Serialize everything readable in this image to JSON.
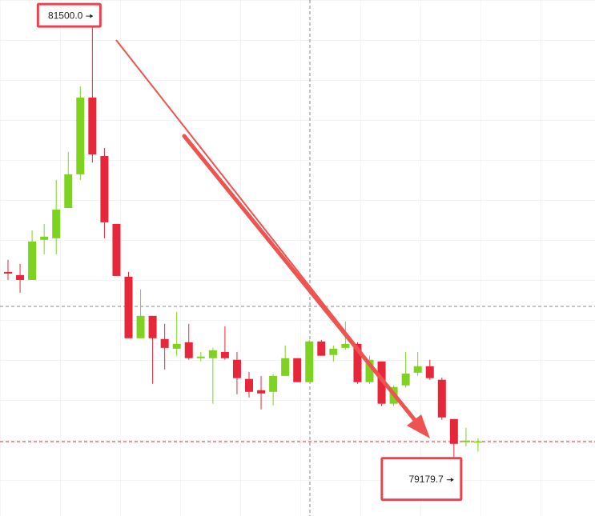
{
  "chart_data": {
    "type": "candlestick",
    "up_color": "#7ed321",
    "down_color": "#e8263a",
    "ylim": [
      79000,
      81560
    ],
    "candles": [
      {
        "open": 80211,
        "high": 80271,
        "low": 80171,
        "close": 80203
      },
      {
        "open": 80195,
        "high": 80251,
        "low": 80108,
        "close": 80171
      },
      {
        "open": 80171,
        "high": 80417,
        "low": 80171,
        "close": 80362
      },
      {
        "open": 80370,
        "high": 80449,
        "low": 80298,
        "close": 80386
      },
      {
        "open": 80378,
        "high": 80667,
        "low": 80298,
        "close": 80520
      },
      {
        "open": 80528,
        "high": 80806,
        "low": 80528,
        "close": 80695
      },
      {
        "open": 80695,
        "high": 81131,
        "low": 80667,
        "close": 81076
      },
      {
        "open": 81076,
        "high": 81500,
        "low": 80754,
        "close": 80794
      },
      {
        "open": 80786,
        "high": 80826,
        "low": 80378,
        "close": 80457
      },
      {
        "open": 80449,
        "high": 80449,
        "low": 80191,
        "close": 80191
      },
      {
        "open": 80187,
        "high": 80211,
        "low": 79882,
        "close": 79882
      },
      {
        "open": 79882,
        "high": 80124,
        "low": 79882,
        "close": 79993
      },
      {
        "open": 79993,
        "high": 79993,
        "low": 79656,
        "close": 79882
      },
      {
        "open": 79878,
        "high": 79953,
        "low": 79727,
        "close": 79834
      },
      {
        "open": 79830,
        "high": 80013,
        "low": 79795,
        "close": 79854
      },
      {
        "open": 79862,
        "high": 79953,
        "low": 79775,
        "close": 79783
      },
      {
        "open": 79783,
        "high": 79814,
        "low": 79767,
        "close": 79791
      },
      {
        "open": 79783,
        "high": 79834,
        "low": 79557,
        "close": 79822
      },
      {
        "open": 79814,
        "high": 79941,
        "low": 79775,
        "close": 79783
      },
      {
        "open": 79775,
        "high": 79814,
        "low": 79604,
        "close": 79684
      },
      {
        "open": 79680,
        "high": 79715,
        "low": 79588,
        "close": 79616
      },
      {
        "open": 79624,
        "high": 79695,
        "low": 79529,
        "close": 79608
      },
      {
        "open": 79616,
        "high": 79703,
        "low": 79549,
        "close": 79695
      },
      {
        "open": 79695,
        "high": 79846,
        "low": 79695,
        "close": 79783
      },
      {
        "open": 79783,
        "high": 79783,
        "low": 79664,
        "close": 79664
      },
      {
        "open": 79664,
        "high": 79874,
        "low": 79664,
        "close": 79866
      },
      {
        "open": 79866,
        "high": 79874,
        "low": 79795,
        "close": 79795
      },
      {
        "open": 79799,
        "high": 79846,
        "low": 79767,
        "close": 79830
      },
      {
        "open": 79834,
        "high": 79965,
        "low": 79826,
        "close": 79854
      },
      {
        "open": 79854,
        "high": 79862,
        "low": 79656,
        "close": 79664
      },
      {
        "open": 79664,
        "high": 79795,
        "low": 79656,
        "close": 79775
      },
      {
        "open": 79767,
        "high": 79767,
        "low": 79545,
        "close": 79557
      },
      {
        "open": 79557,
        "high": 79648,
        "low": 79545,
        "close": 79640
      },
      {
        "open": 79648,
        "high": 79814,
        "low": 79636,
        "close": 79707
      },
      {
        "open": 79711,
        "high": 79814,
        "low": 79695,
        "close": 79743
      },
      {
        "open": 79743,
        "high": 79775,
        "low": 79676,
        "close": 79684
      },
      {
        "open": 79676,
        "high": 79687,
        "low": 79477,
        "close": 79489
      },
      {
        "open": 79481,
        "high": 79481,
        "low": 79179.7,
        "close": 79358
      },
      {
        "open": 79366,
        "high": 79438,
        "low": 79346,
        "close": 79374
      },
      {
        "open": 79366,
        "high": 79386,
        "low": 79319,
        "close": 79370
      }
    ],
    "annotations": {
      "high": "81500.0",
      "low": "79179.7"
    }
  }
}
